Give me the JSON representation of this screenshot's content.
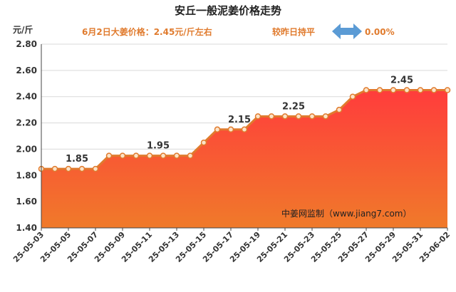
{
  "chart_data": {
    "type": "area",
    "title": "安丘一般泥姜价格走势",
    "subtitle": {
      "price_text": "6月2日大姜价格：2.45元/斤左右",
      "change_text": "较昨日持平",
      "change_value": "0.00%"
    },
    "ylabel": "元/斤",
    "ylim": [
      1.4,
      2.8
    ],
    "yticks": [
      1.4,
      1.6,
      1.8,
      2.0,
      2.2,
      2.4,
      2.6,
      2.8
    ],
    "ytick_labels": [
      "1.40",
      "1.60",
      "1.80",
      "2.00",
      "2.20",
      "2.40",
      "2.60",
      "2.80"
    ],
    "x": [
      "25-05-03",
      "25-05-04",
      "25-05-05",
      "25-05-06",
      "25-05-07",
      "25-05-08",
      "25-05-09",
      "25-05-10",
      "25-05-11",
      "25-05-12",
      "25-05-13",
      "25-05-14",
      "25-05-15",
      "25-05-16",
      "25-05-17",
      "25-05-18",
      "25-05-19",
      "25-05-20",
      "25-05-21",
      "25-05-22",
      "25-05-23",
      "25-05-24",
      "25-05-25",
      "25-05-26",
      "25-05-27",
      "25-05-28",
      "25-05-29",
      "25-05-30",
      "25-05-31",
      "25-06-01",
      "25-06-02"
    ],
    "xtick_labels": [
      "25-05-03",
      "25-05-05",
      "25-05-07",
      "25-05-09",
      "25-05-11",
      "25-05-13",
      "25-05-15",
      "25-05-17",
      "25-05-19",
      "25-05-21",
      "25-05-23",
      "25-05-25",
      "25-05-27",
      "25-05-29",
      "25-05-31",
      "25-06-02"
    ],
    "series": [
      {
        "values": [
          1.85,
          1.85,
          1.85,
          1.85,
          1.85,
          1.95,
          1.95,
          1.95,
          1.95,
          1.95,
          1.95,
          1.95,
          2.05,
          2.15,
          2.15,
          2.15,
          2.25,
          2.25,
          2.25,
          2.25,
          2.25,
          2.25,
          2.3,
          2.4,
          2.45,
          2.45,
          2.45,
          2.45,
          2.45,
          2.45,
          2.45
        ]
      }
    ],
    "data_labels": [
      {
        "x": "25-05-05",
        "value": 1.85,
        "text": "1.85"
      },
      {
        "x": "25-05-11",
        "value": 1.95,
        "text": "1.95"
      },
      {
        "x": "25-05-17",
        "value": 2.15,
        "text": "2.15"
      },
      {
        "x": "25-05-21",
        "value": 2.25,
        "text": "2.25"
      },
      {
        "x": "25-05-29",
        "value": 2.45,
        "text": "2.45"
      }
    ],
    "grid": "horizontal",
    "watermark": "中姜网监制（www.jiang7.com）",
    "colors": {
      "line": "#e07b2e",
      "area_top": "#ff3c3c",
      "area_bottom": "#f07a2a",
      "subtitle_text": "#e07b2e",
      "arrow": "#5b9bd5"
    }
  }
}
